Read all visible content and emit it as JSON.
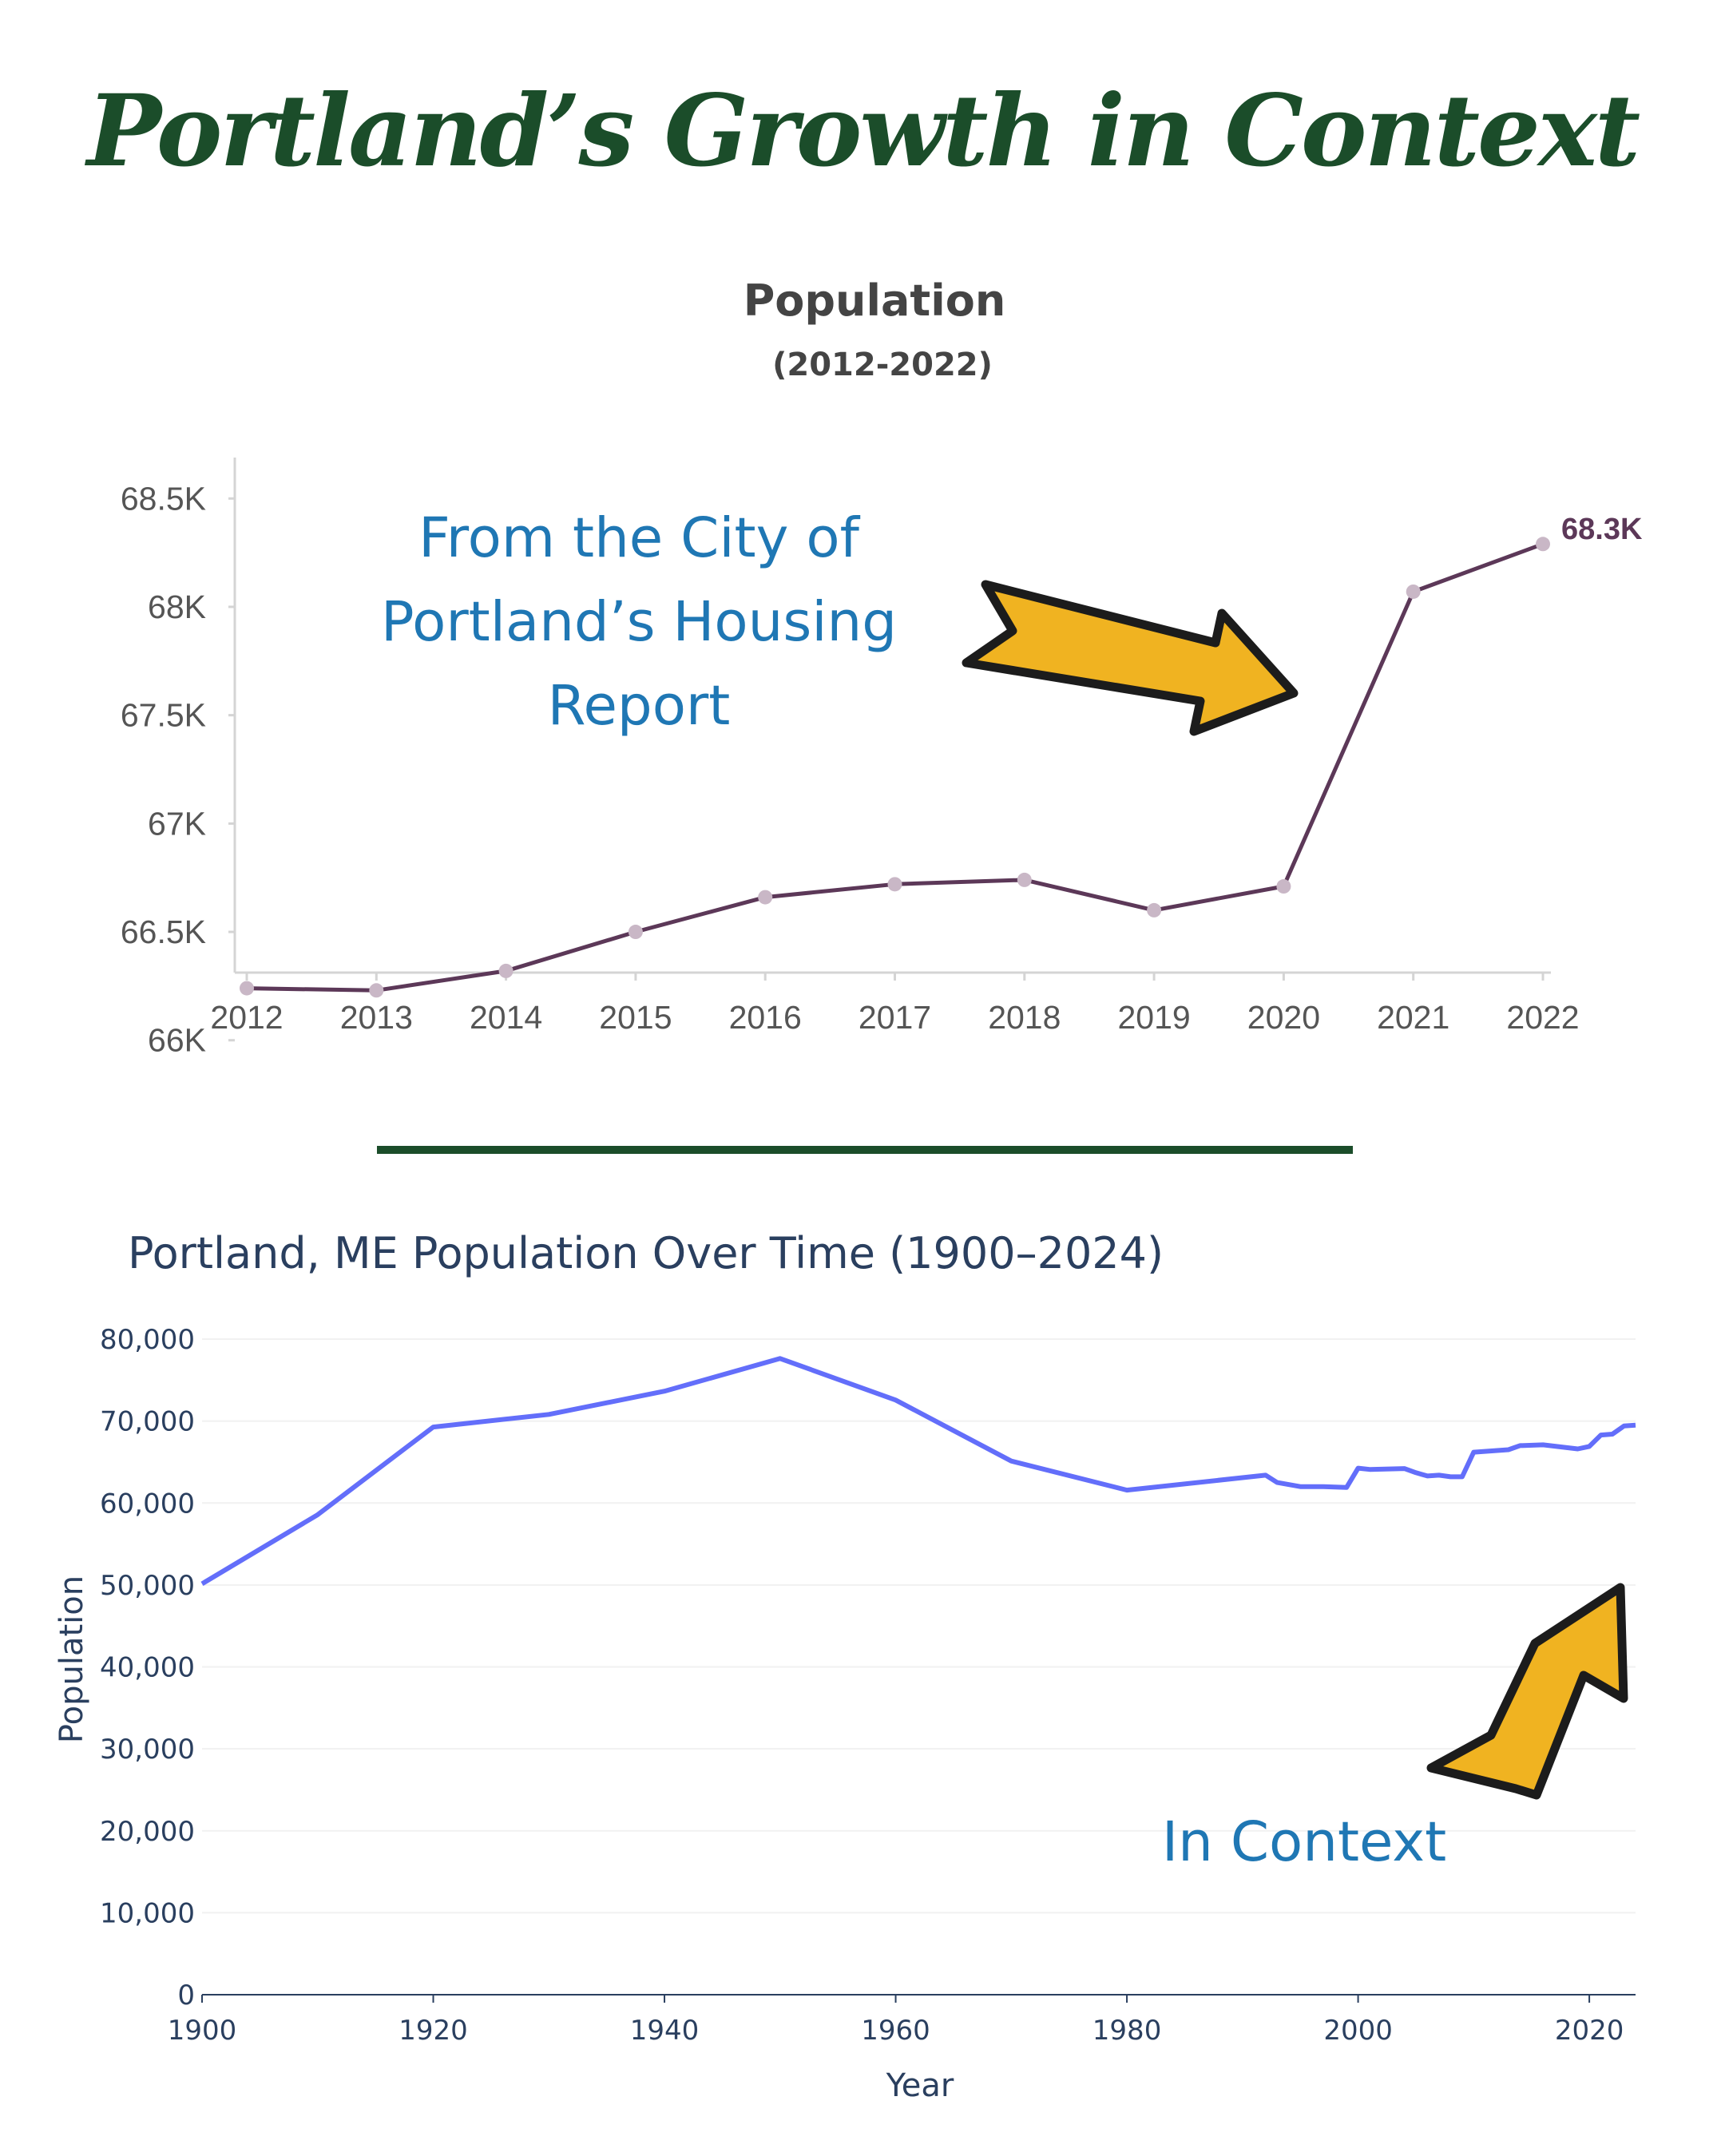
{
  "page": {
    "title": "Portland’s Growth in Context"
  },
  "divider_color": "#1b4d2a",
  "colors": {
    "arrow_fill": "#f0b321",
    "annotation_text": "#1f77b4",
    "title_green": "#1b4d2a"
  },
  "annotations": {
    "top": [
      "From the City of",
      "Portland’s Housing",
      "Report"
    ],
    "bottom": "In Context"
  },
  "chart_data": [
    {
      "type": "line",
      "title": "Population",
      "subtitle": "(2012-2022)",
      "x": [
        2012,
        2013,
        2014,
        2015,
        2016,
        2017,
        2018,
        2019,
        2020,
        2021,
        2022
      ],
      "y": [
        66240,
        66230,
        66320,
        66500,
        66660,
        66720,
        66740,
        66600,
        66710,
        68070,
        68290
      ],
      "ylim": [
        65800,
        68700
      ],
      "yticks": [
        66000,
        66500,
        67000,
        67500,
        68000,
        68500
      ],
      "ytick_labels": [
        "66K",
        "66.5K",
        "67K",
        "67.5K",
        "68K",
        "68.5K"
      ],
      "end_label": "68.3K",
      "line_color": "#5c3858",
      "marker_color": "#c9b7c6"
    },
    {
      "type": "line",
      "title": "Portland, ME Population Over Time (1900–2024)",
      "xlabel": "Year",
      "ylabel": "Population",
      "xlim": [
        1900,
        2024
      ],
      "ylim": [
        0,
        80000
      ],
      "xticks": [
        1900,
        1920,
        1940,
        1960,
        1980,
        2000,
        2020
      ],
      "yticks": [
        0,
        10000,
        20000,
        30000,
        40000,
        50000,
        60000,
        70000,
        80000
      ],
      "ytick_labels": [
        "0",
        "10,000",
        "20,000",
        "30,000",
        "40,000",
        "50,000",
        "60,000",
        "70,000",
        "80,000"
      ],
      "line_color": "#636efa",
      "x": [
        1900,
        1910,
        1920,
        1930,
        1940,
        1950,
        1960,
        1970,
        1980,
        1992,
        1993,
        1995,
        1997,
        1999,
        2000,
        2001,
        2004,
        2005,
        2006,
        2007,
        2008,
        2009,
        2010,
        2013,
        2014,
        2016,
        2019,
        2020,
        2021,
        2022,
        2023,
        2024
      ],
      "y": [
        50145,
        58571,
        69272,
        70810,
        73643,
        77634,
        72566,
        65116,
        61572,
        63400,
        62500,
        62000,
        62000,
        61900,
        64250,
        64100,
        64200,
        63700,
        63300,
        63400,
        63200,
        63200,
        66200,
        66500,
        67000,
        67100,
        66600,
        66900,
        68300,
        68400,
        69400,
        69500
      ]
    }
  ]
}
